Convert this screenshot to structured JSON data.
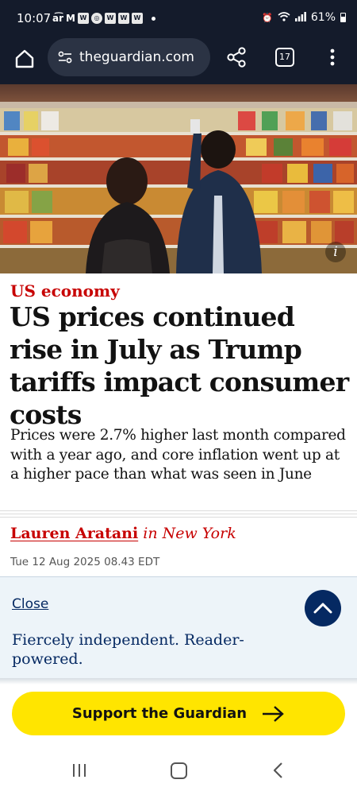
{
  "status_bar": {
    "time": "10:07",
    "battery": "61%",
    "left_icons": [
      "air-icon",
      "gmail-icon",
      "weather-channel-icon",
      "target-icon",
      "weather-channel-icon",
      "weather-channel-icon",
      "weather-channel-icon"
    ],
    "right_icons": [
      "alarm-icon",
      "wifi-icon",
      "signal-icon",
      "battery-icon"
    ]
  },
  "browser": {
    "url": "theguardian.com",
    "tab_count": "17"
  },
  "article": {
    "kicker": "US economy",
    "headline": "US prices continued rise in July as Trump tariffs impact consumer costs",
    "standfirst": "Prices were 2.7% higher last month compared with a year ago, and core inflation went up at a higher pace than what was seen in June",
    "author": "Lauren Aratani",
    "location": "in New York",
    "date": "Tue 12 Aug 2025 08.43 EDT",
    "image_info_label": "i"
  },
  "banner": {
    "close_label": "Close",
    "text": "Fiercely independent. Reader-powered."
  },
  "support": {
    "label": "Support the Guardian"
  },
  "colors": {
    "guardian_red": "#c70000",
    "guardian_navy": "#052962",
    "support_yellow": "#ffe500",
    "chrome_dark": "#141b2b"
  }
}
